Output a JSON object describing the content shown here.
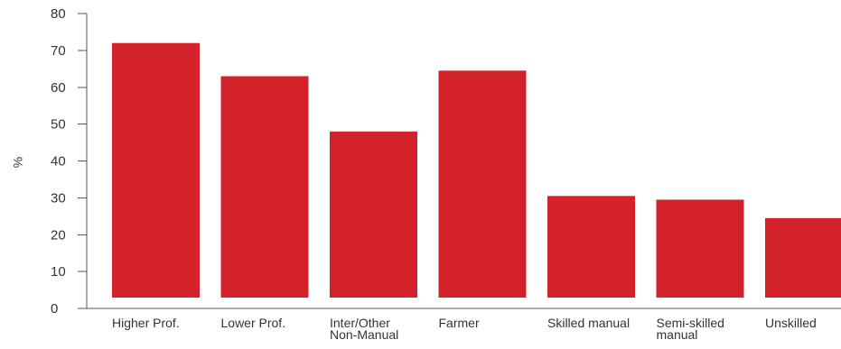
{
  "chart_data": {
    "type": "bar",
    "title": "",
    "xlabel": "",
    "ylabel": "%",
    "ylim": [
      0,
      80
    ],
    "yticks": [
      0,
      10,
      20,
      30,
      40,
      50,
      60,
      70,
      80
    ],
    "grid": false,
    "bar_color": "#d3222a",
    "categories": [
      [
        "Higher Prof."
      ],
      [
        "Lower Prof."
      ],
      [
        "Inter/Other",
        "Non-Manual"
      ],
      [
        "Farmer"
      ],
      [
        "Skilled manual"
      ],
      [
        "Semi-skilled",
        "manual"
      ],
      [
        "Unskilled"
      ]
    ],
    "values": [
      72,
      63,
      48,
      64.5,
      30.5,
      29.5,
      24.5
    ]
  }
}
